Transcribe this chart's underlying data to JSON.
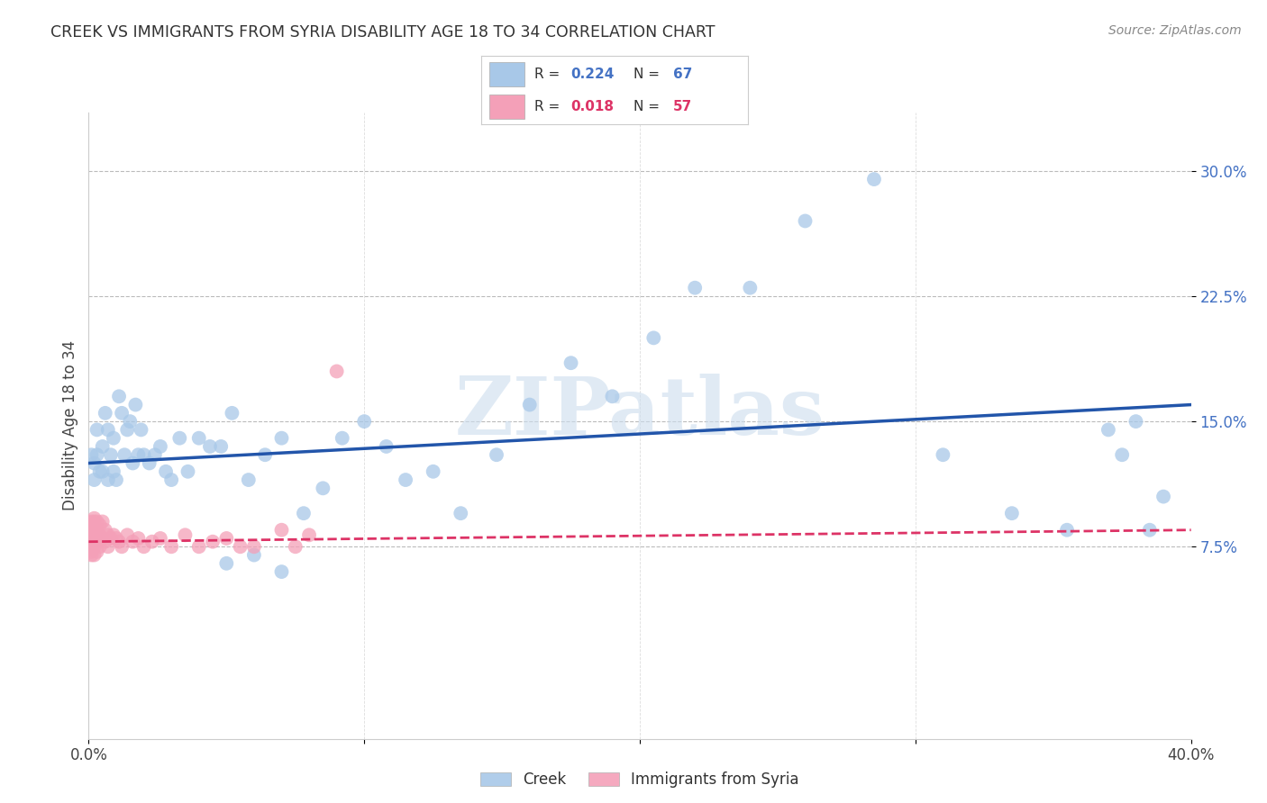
{
  "title": "CREEK VS IMMIGRANTS FROM SYRIA DISABILITY AGE 18 TO 34 CORRELATION CHART",
  "source": "Source: ZipAtlas.com",
  "ylabel": "Disability Age 18 to 34",
  "yticks": [
    "7.5%",
    "15.0%",
    "22.5%",
    "30.0%"
  ],
  "ytick_vals": [
    0.075,
    0.15,
    0.225,
    0.3
  ],
  "xlim": [
    0.0,
    0.4
  ],
  "ylim": [
    -0.04,
    0.335
  ],
  "legend1_r": "0.224",
  "legend1_n": "67",
  "legend2_r": "0.018",
  "legend2_n": "57",
  "creek_color": "#a8c8e8",
  "creek_line_color": "#2255aa",
  "syria_color": "#f4a0b8",
  "syria_line_color": "#dd3366",
  "watermark": "ZIPatlas",
  "creek_data_x": [
    0.001,
    0.002,
    0.002,
    0.003,
    0.003,
    0.004,
    0.005,
    0.005,
    0.006,
    0.007,
    0.007,
    0.008,
    0.009,
    0.009,
    0.01,
    0.011,
    0.012,
    0.013,
    0.014,
    0.015,
    0.016,
    0.017,
    0.018,
    0.019,
    0.02,
    0.022,
    0.024,
    0.026,
    0.028,
    0.03,
    0.033,
    0.036,
    0.04,
    0.044,
    0.048,
    0.052,
    0.058,
    0.064,
    0.07,
    0.078,
    0.085,
    0.092,
    0.1,
    0.108,
    0.115,
    0.125,
    0.135,
    0.148,
    0.16,
    0.175,
    0.19,
    0.205,
    0.22,
    0.24,
    0.26,
    0.285,
    0.31,
    0.335,
    0.355,
    0.37,
    0.375,
    0.38,
    0.385,
    0.39,
    0.05,
    0.06,
    0.07
  ],
  "creek_data_y": [
    0.13,
    0.125,
    0.115,
    0.145,
    0.13,
    0.12,
    0.135,
    0.12,
    0.155,
    0.145,
    0.115,
    0.13,
    0.14,
    0.12,
    0.115,
    0.165,
    0.155,
    0.13,
    0.145,
    0.15,
    0.125,
    0.16,
    0.13,
    0.145,
    0.13,
    0.125,
    0.13,
    0.135,
    0.12,
    0.115,
    0.14,
    0.12,
    0.14,
    0.135,
    0.135,
    0.155,
    0.115,
    0.13,
    0.14,
    0.095,
    0.11,
    0.14,
    0.15,
    0.135,
    0.115,
    0.12,
    0.095,
    0.13,
    0.16,
    0.185,
    0.165,
    0.2,
    0.23,
    0.23,
    0.27,
    0.295,
    0.13,
    0.095,
    0.085,
    0.145,
    0.13,
    0.15,
    0.085,
    0.105,
    0.065,
    0.07,
    0.06
  ],
  "syria_data_x": [
    0.001,
    0.001,
    0.001,
    0.001,
    0.001,
    0.001,
    0.001,
    0.001,
    0.001,
    0.001,
    0.001,
    0.001,
    0.001,
    0.002,
    0.002,
    0.002,
    0.002,
    0.002,
    0.002,
    0.002,
    0.002,
    0.003,
    0.003,
    0.003,
    0.003,
    0.003,
    0.004,
    0.004,
    0.004,
    0.005,
    0.005,
    0.006,
    0.006,
    0.007,
    0.007,
    0.008,
    0.009,
    0.01,
    0.011,
    0.012,
    0.014,
    0.016,
    0.018,
    0.02,
    0.023,
    0.026,
    0.03,
    0.035,
    0.04,
    0.045,
    0.05,
    0.055,
    0.06,
    0.07,
    0.075,
    0.08,
    0.09
  ],
  "syria_data_y": [
    0.09,
    0.085,
    0.085,
    0.085,
    0.08,
    0.08,
    0.08,
    0.078,
    0.075,
    0.075,
    0.075,
    0.072,
    0.07,
    0.092,
    0.09,
    0.088,
    0.085,
    0.082,
    0.078,
    0.075,
    0.07,
    0.09,
    0.085,
    0.082,
    0.078,
    0.072,
    0.088,
    0.082,
    0.075,
    0.09,
    0.08,
    0.085,
    0.078,
    0.082,
    0.075,
    0.08,
    0.082,
    0.08,
    0.078,
    0.075,
    0.082,
    0.078,
    0.08,
    0.075,
    0.078,
    0.08,
    0.075,
    0.082,
    0.075,
    0.078,
    0.08,
    0.075,
    0.075,
    0.085,
    0.075,
    0.082,
    0.18
  ]
}
